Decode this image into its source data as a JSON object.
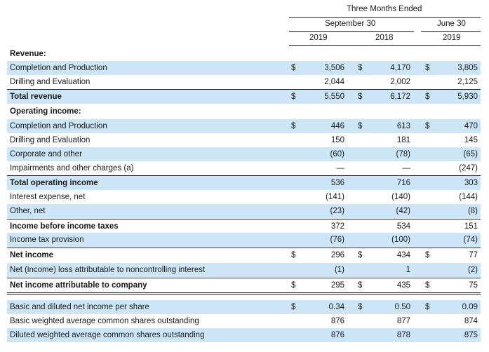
{
  "header": {
    "period_title": "Three Months Ended",
    "group1": "September 30",
    "group2": "June 30",
    "years": [
      "2019",
      "2018",
      "2019"
    ]
  },
  "currency_symbol": "$",
  "rows": [
    {
      "label": "Revenue:",
      "type": "section",
      "shade": false,
      "bold": true,
      "dollars": false,
      "values": [
        "",
        "",
        ""
      ]
    },
    {
      "label": "Completion and Production",
      "type": "data",
      "shade": true,
      "bold": false,
      "dollars": true,
      "values": [
        "3,506",
        "4,170",
        "3,805"
      ]
    },
    {
      "label": "Drilling and Evaluation",
      "type": "data",
      "shade": false,
      "bold": false,
      "dollars": false,
      "values": [
        "2,044",
        "2,002",
        "2,125"
      ]
    },
    {
      "label": "Total revenue",
      "type": "total",
      "shade": true,
      "bold": true,
      "dollars": true,
      "values": [
        "5,550",
        "6,172",
        "5,930"
      ]
    },
    {
      "label": "Operating income:",
      "type": "section",
      "shade": false,
      "bold": true,
      "dollars": false,
      "values": [
        "",
        "",
        ""
      ]
    },
    {
      "label": "Completion and Production",
      "type": "data",
      "shade": true,
      "bold": false,
      "dollars": true,
      "values": [
        "446",
        "613",
        "470"
      ]
    },
    {
      "label": "Drilling and Evaluation",
      "type": "data",
      "shade": false,
      "bold": false,
      "dollars": false,
      "values": [
        "150",
        "181",
        "145"
      ]
    },
    {
      "label": "Corporate and other",
      "type": "data",
      "shade": true,
      "bold": false,
      "dollars": false,
      "values": [
        "(60)",
        "(78)",
        "(65)"
      ]
    },
    {
      "label": "Impairments and other charges (a)",
      "type": "data",
      "shade": false,
      "bold": false,
      "dollars": false,
      "values": [
        "—",
        "—",
        "(247)"
      ]
    },
    {
      "label": "Total operating income",
      "type": "total",
      "shade": true,
      "bold": true,
      "dollars": false,
      "values": [
        "536",
        "716",
        "303"
      ]
    },
    {
      "label": "Interest expense, net",
      "type": "data",
      "shade": false,
      "bold": false,
      "dollars": false,
      "values": [
        "(141)",
        "(140)",
        "(144)"
      ]
    },
    {
      "label": "Other, net",
      "type": "data",
      "shade": true,
      "bold": false,
      "dollars": false,
      "values": [
        "(23)",
        "(42)",
        "(8)"
      ]
    },
    {
      "label": "Income before income taxes",
      "type": "total",
      "shade": false,
      "bold": true,
      "dollars": false,
      "values": [
        "372",
        "534",
        "151"
      ]
    },
    {
      "label": "Income tax provision",
      "type": "data",
      "shade": true,
      "bold": false,
      "dollars": false,
      "values": [
        "(76)",
        "(100)",
        "(74)"
      ]
    },
    {
      "label": "Net income",
      "type": "total",
      "shade": false,
      "bold": true,
      "dollars": true,
      "values": [
        "296",
        "434",
        "77"
      ]
    },
    {
      "label": "Net (income) loss attributable to noncontrolling interest",
      "type": "data",
      "shade": true,
      "bold": false,
      "dollars": false,
      "values": [
        "(1)",
        "1",
        "(2)"
      ]
    },
    {
      "label": "Net income attributable to company",
      "type": "grand",
      "shade": false,
      "bold": true,
      "dollars": true,
      "values": [
        "295",
        "435",
        "75"
      ]
    },
    {
      "label": "Basic and diluted net income per share",
      "type": "data",
      "shade": true,
      "bold": false,
      "dollars": true,
      "values": [
        "0.34",
        "0.50",
        "0.09"
      ]
    },
    {
      "label": "Basic weighted average common shares outstanding",
      "type": "data",
      "shade": false,
      "bold": false,
      "dollars": false,
      "values": [
        "876",
        "877",
        "874"
      ]
    },
    {
      "label": "Diluted weighted average common shares outstanding",
      "type": "data",
      "shade": true,
      "bold": false,
      "dollars": false,
      "values": [
        "876",
        "878",
        "875"
      ]
    }
  ]
}
